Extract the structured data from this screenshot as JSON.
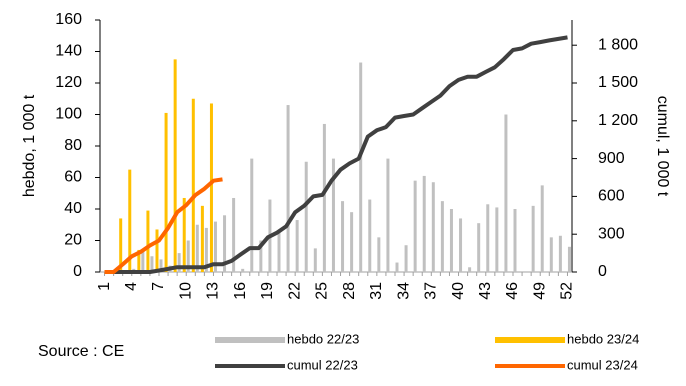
{
  "chart_data": {
    "type": "bar_line",
    "ylabel": "hebdo, 1 000 t",
    "y2label": "cumul, 1 000 t",
    "source": "Source : CE",
    "categories": [
      "1",
      null,
      null,
      "4",
      null,
      null,
      "7",
      null,
      null,
      "10",
      null,
      null,
      "13",
      null,
      null,
      "16",
      null,
      null,
      "19",
      null,
      null,
      "22",
      null,
      null,
      "25",
      null,
      null,
      "28",
      null,
      null,
      "31",
      null,
      null,
      "34",
      null,
      null,
      "37",
      null,
      null,
      "40",
      null,
      null,
      "43",
      null,
      null,
      "46",
      null,
      null,
      "49",
      null,
      null,
      "52"
    ],
    "ylim": [
      0,
      160
    ],
    "yticks": [
      0,
      20,
      40,
      60,
      80,
      100,
      120,
      140,
      160
    ],
    "y2lim": [
      0,
      2000
    ],
    "y2ticks": [
      0,
      300,
      600,
      900,
      {
        "value": 1200,
        "label": "1 200"
      },
      {
        "value": 1500,
        "label": "1 500"
      },
      {
        "value": 1800,
        "label": "1 800"
      }
    ],
    "series": [
      {
        "name": "hebdo 22/23",
        "color": "#c0c0c0",
        "kind": "bar",
        "values": [
          0,
          0,
          0,
          2,
          14,
          10,
          8,
          4,
          12,
          20,
          30,
          28,
          32,
          36,
          47,
          2,
          72,
          20,
          46,
          25,
          106,
          33,
          70,
          15,
          94,
          72,
          45,
          38,
          133,
          46,
          22,
          72,
          6,
          17,
          58,
          61,
          57,
          45,
          40,
          34,
          3,
          31,
          43,
          41,
          100,
          40,
          0,
          42,
          55,
          22,
          23,
          16
        ]
      },
      {
        "name": "hebdo 23/24",
        "color": "#ffc000",
        "kind": "bar",
        "values": [
          0,
          0,
          34,
          65,
          14,
          39,
          27,
          101,
          135,
          47,
          110,
          42,
          107,
          0,
          null,
          null,
          null,
          null,
          null,
          null,
          null,
          null,
          null,
          null,
          null,
          null,
          null,
          null,
          null,
          null,
          null,
          null,
          null,
          null,
          null,
          null,
          null,
          null,
          null,
          null,
          null,
          null,
          null,
          null,
          null,
          null,
          null,
          null,
          null,
          null,
          null,
          null
        ]
      },
      {
        "name": "cumul 22/23",
        "color": "#404040",
        "kind": "line",
        "axis": "y2",
        "values": [
          0,
          0,
          0,
          0,
          0,
          0,
          12,
          25,
          38,
          38,
          38,
          38,
          62,
          62,
          88,
          140,
          190,
          190,
          275,
          312,
          362,
          475,
          525,
          600,
          612,
          725,
          812,
          862,
          900,
          1075,
          1125,
          1150,
          1225,
          1238,
          1250,
          1300,
          1350,
          1400,
          1475,
          1525,
          1550,
          1550,
          1588,
          1625,
          1690,
          1762,
          1775,
          1812,
          1825,
          1838,
          1850,
          1862
        ]
      },
      {
        "name": "cumul 23/24",
        "color": "#ff6600",
        "kind": "line",
        "axis": "y2",
        "values": [
          0,
          0,
          60,
          125,
          160,
          210,
          250,
          350,
          475,
          530,
          610,
          660,
          725,
          735,
          null,
          null,
          null,
          null,
          null,
          null,
          null,
          null,
          null,
          null,
          null,
          null,
          null,
          null,
          null,
          null,
          null,
          null,
          null,
          null,
          null,
          null,
          null,
          null,
          null,
          null,
          null,
          null,
          null,
          null,
          null,
          null,
          null,
          null,
          null,
          null,
          null,
          null
        ]
      }
    ]
  }
}
